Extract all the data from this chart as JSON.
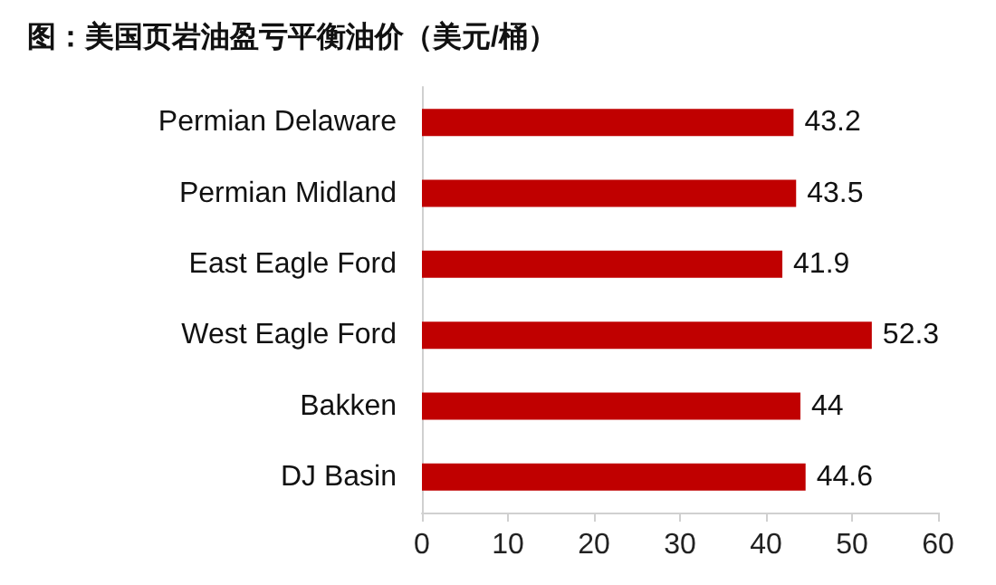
{
  "chart_data": {
    "type": "bar",
    "orientation": "horizontal",
    "title": "图：美国页岩油盈亏平衡油价（美元/桶）",
    "categories": [
      "Permian Delaware",
      "Permian Midland",
      "East Eagle Ford",
      "West Eagle Ford",
      "Bakken",
      "DJ Basin"
    ],
    "values": [
      43.2,
      43.5,
      41.9,
      52.3,
      44,
      44.6
    ],
    "color": "#c00000",
    "xlim": [
      0,
      60
    ],
    "xticks": [
      0,
      10,
      20,
      30,
      40,
      50,
      60
    ],
    "grid": false,
    "data_labels": true
  }
}
